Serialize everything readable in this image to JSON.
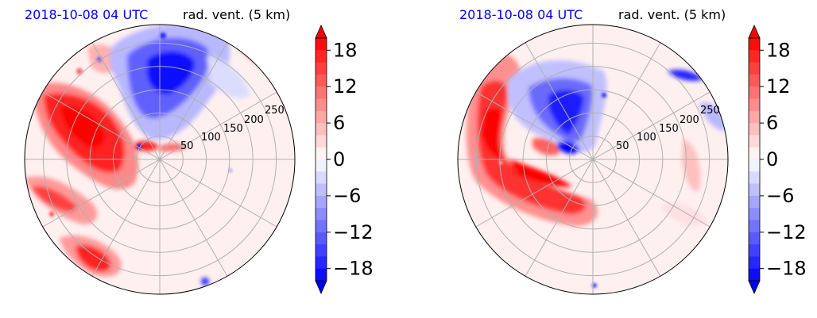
{
  "panels": [
    {
      "title_left": "2018-10-08 04 UTC",
      "title_right": "rad. vent. (5 km)",
      "radial_tick_labels": [
        "50",
        "100",
        "150",
        "200",
        "250"
      ]
    },
    {
      "title_left": "2018-10-08 04 UTC",
      "title_right": "rad. vent. (5 km)",
      "radial_tick_labels": [
        "50",
        "100",
        "150",
        "200",
        "250"
      ]
    }
  ],
  "colorbar": {
    "tick_labels": [
      "18",
      "12",
      "6",
      "0",
      "−6",
      "−12",
      "−18"
    ],
    "ticks": [
      18,
      12,
      6,
      0,
      -6,
      -12,
      -18
    ],
    "range": [
      -20,
      20
    ],
    "levels": 20,
    "colors": {
      "min": "#0000ff",
      "mid": "#ffffff",
      "max": "#ff0000"
    },
    "extend": "both"
  },
  "chart_data": [
    {
      "type": "heatmap",
      "projection": "polar",
      "title": "2018-10-08 04 UTC",
      "subtitle": "rad. vent. (5 km)",
      "r_ticks": [
        50,
        100,
        150,
        200,
        250
      ],
      "r_max": 290,
      "theta_gridlines_deg": [
        0,
        30,
        60,
        90,
        120,
        150,
        180,
        210,
        240,
        270,
        300,
        330
      ],
      "value_range": [
        -20,
        20
      ],
      "features": [
        {
          "sign": "positive",
          "sector": "north-west to west",
          "r_range": [
            80,
            200
          ],
          "peak": 20
        },
        {
          "sign": "positive",
          "sector": "south-west",
          "r_range": [
            100,
            290
          ],
          "peak": 20
        },
        {
          "sign": "negative",
          "sector": "north",
          "r_range": [
            60,
            260
          ],
          "peak": -18
        }
      ]
    },
    {
      "type": "heatmap",
      "projection": "polar",
      "title": "2018-10-08 04 UTC",
      "subtitle": "rad. vent. (5 km)",
      "r_ticks": [
        50,
        100,
        150,
        200,
        250
      ],
      "r_max": 290,
      "theta_gridlines_deg": [
        0,
        30,
        60,
        90,
        120,
        150,
        180,
        210,
        240,
        270,
        300,
        330
      ],
      "value_range": [
        -20,
        20
      ],
      "features": [
        {
          "sign": "positive",
          "sector": "west to south (curved band)",
          "r_range": [
            60,
            280
          ],
          "peak": 20
        },
        {
          "sign": "negative",
          "sector": "north-west",
          "r_range": [
            20,
            160
          ],
          "peak": -18
        }
      ]
    }
  ]
}
